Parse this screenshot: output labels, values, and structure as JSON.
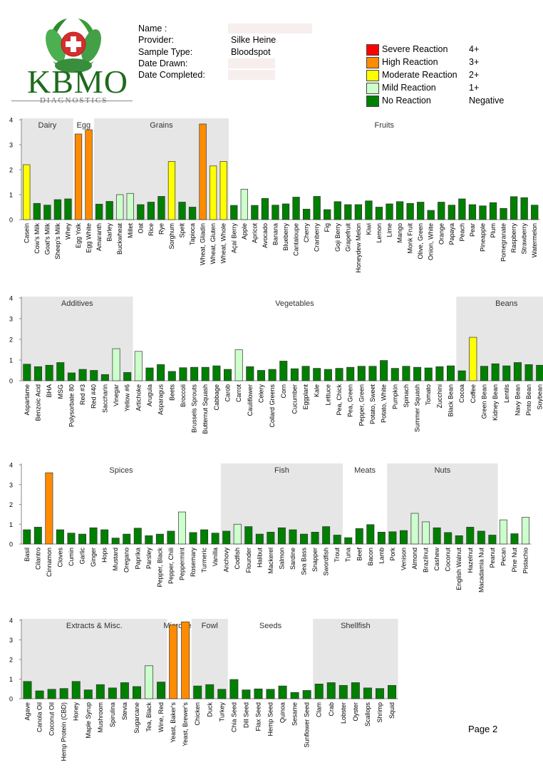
{
  "header": {
    "logo": {
      "name": "KBMO",
      "subtitle": "DIAGNOSTICS"
    },
    "fields": [
      {
        "label": "Name :",
        "value": ""
      },
      {
        "label": "Provider:",
        "value": "Silke Heine"
      },
      {
        "label": "Sample Type:",
        "value": "Bloodspot"
      },
      {
        "label": "Date Drawn:",
        "value": ""
      },
      {
        "label": "Date Completed:",
        "value": ""
      }
    ]
  },
  "legend": [
    {
      "label": "Severe Reaction",
      "level": "4+",
      "color": "#ff0000"
    },
    {
      "label": "High Reaction",
      "level": "3+",
      "color": "#ff8c00"
    },
    {
      "label": "Moderate Reaction",
      "level": "2+",
      "color": "#ffff00"
    },
    {
      "label": "Mild Reaction",
      "level": "1+",
      "color": "#ccffcc"
    },
    {
      "label": "No Reaction",
      "level": "Negative",
      "color": "#008000"
    }
  ],
  "page": {
    "number_label": "Page 2"
  },
  "chart_data": [
    {
      "type": "bar",
      "ylim": [
        0,
        4
      ],
      "yticks": [
        0,
        1,
        2,
        3,
        4
      ],
      "groups": [
        {
          "name": "Dairy",
          "start": 0,
          "end": 4,
          "shaded": true
        },
        {
          "name": "Egg",
          "start": 5,
          "end": 6,
          "shaded": false
        },
        {
          "name": "Grains",
          "start": 7,
          "end": 19,
          "shaded": true
        },
        {
          "name": "Fruits",
          "start": 20,
          "end": 49,
          "shaded": false
        }
      ],
      "categories": [
        "Casein",
        "Cow's Milk",
        "Goat's Milk",
        "Sheep's Milk",
        "Whey",
        "Egg Yolk",
        "Egg White",
        "Amaranth",
        "Barley",
        "Buckwheat",
        "Millet",
        "Oat",
        "Rice",
        "Rye",
        "Sorghum",
        "Spelt",
        "Tapioca",
        "Wheat, Gliadin",
        "Wheat, Gluten",
        "Wheat, Whole",
        "Açaí Berry",
        "Apple",
        "Apricot",
        "Avocado",
        "Banana",
        "Blueberry",
        "Cantaloupe",
        "Cherry",
        "Cranberry",
        "Fig",
        "Goji Berry",
        "Grapefruit",
        "Honeydew Melon",
        "Kiwi",
        "Lemon",
        "Lime",
        "Mango",
        "Monk Fruit",
        "Olive, Green",
        "Onion, White",
        "Orange",
        "Papaya",
        "Peach",
        "Pear",
        "Pineapple",
        "Plum",
        "Pomegranate",
        "Raspberry",
        "Strawberry",
        "Watermelon"
      ],
      "values": [
        2.2,
        0.65,
        0.58,
        0.8,
        0.83,
        3.43,
        3.6,
        0.62,
        0.73,
        1.0,
        1.05,
        0.6,
        0.7,
        0.93,
        2.33,
        0.7,
        0.5,
        3.83,
        2.15,
        2.33,
        0.57,
        1.22,
        0.57,
        0.85,
        0.58,
        0.63,
        0.9,
        0.42,
        0.93,
        0.4,
        0.72,
        0.6,
        0.6,
        0.75,
        0.5,
        0.63,
        0.72,
        0.65,
        0.7,
        0.37,
        0.7,
        0.58,
        0.83,
        0.6,
        0.55,
        0.68,
        0.45,
        0.92,
        0.88,
        0.58
      ]
    },
    {
      "type": "bar",
      "ylim": [
        0,
        4
      ],
      "yticks": [
        0,
        1,
        2,
        3,
        4
      ],
      "groups": [
        {
          "name": "Additives",
          "start": 0,
          "end": 9,
          "shaded": true
        },
        {
          "name": "Vegetables",
          "start": 10,
          "end": 38,
          "shaded": false
        },
        {
          "name": "Beans",
          "start": 39,
          "end": 47,
          "shaded": true
        }
      ],
      "categories": [
        "Aspartame",
        "Benzoic Acid",
        "BHA",
        "MSG",
        "Polysorbate 80",
        "Red #3",
        "Red #40",
        "Saccharin",
        "Vinegar",
        "Yellow #6",
        "Artichoke",
        "Arugula",
        "Asparagus",
        "Beets",
        "Broccoli",
        "Brussels Sprouts",
        "Butternut Squash",
        "Cabbage",
        "Carob",
        "Carrot",
        "Cauliflower",
        "Celery",
        "Collard Greens",
        "Corn",
        "Cucumber",
        "Eggplant",
        "Kale",
        "Lettuce",
        "Pea, Chick",
        "Pea, Green",
        "Pepper, Green",
        "Potato, Sweet",
        "Potato, White",
        "Pumpkin",
        "Spinach",
        "Summer Squash",
        "Tomato",
        "Zucchini",
        "Black Bean",
        "Cocoa",
        "Coffee",
        "Green Bean",
        "Kidney Bean",
        "Lentils",
        "Navy Bean",
        "Pinto Bean",
        "Soybean"
      ],
      "values": [
        0.8,
        0.68,
        0.75,
        0.88,
        0.38,
        0.55,
        0.5,
        0.3,
        1.55,
        0.4,
        1.42,
        0.62,
        0.78,
        0.45,
        0.63,
        0.65,
        0.65,
        0.72,
        0.55,
        1.5,
        0.68,
        0.5,
        0.55,
        0.95,
        0.58,
        0.7,
        0.6,
        0.55,
        0.6,
        0.65,
        0.7,
        0.7,
        0.98,
        0.6,
        0.7,
        0.65,
        0.62,
        0.68,
        0.72,
        0.48,
        2.1,
        0.7,
        0.82,
        0.72,
        0.88,
        0.78,
        0.75
      ]
    },
    {
      "type": "bar",
      "ylim": [
        0,
        4
      ],
      "yticks": [
        0,
        1,
        2,
        3,
        4
      ],
      "groups": [
        {
          "name": "Spices",
          "start": 0,
          "end": 17,
          "shaded": false
        },
        {
          "name": "Fish",
          "start": 18,
          "end": 28,
          "shaded": true
        },
        {
          "name": "Meats",
          "start": 29,
          "end": 32,
          "shaded": false
        },
        {
          "name": "Nuts",
          "start": 33,
          "end": 42,
          "shaded": true
        }
      ],
      "categories": [
        "Basil",
        "Cilantro",
        "Cinnamon",
        "Cloves",
        "Cumin",
        "Garlic",
        "Ginger",
        "Hops",
        "Mustard",
        "Oregano",
        "Paprika",
        "Parsley",
        "Pepper, Black",
        "Pepper, Chili",
        "Peppermint",
        "Rosemary",
        "Turmeric",
        "Vanilla",
        "Anchovy",
        "Codfish",
        "Flounder",
        "Halibut",
        "Mackerel",
        "Salmon",
        "Sardine",
        "Sea Bass",
        "Snapper",
        "Swordfish",
        "Trout",
        "Tuna",
        "Beef",
        "Bacon",
        "Lamb",
        "Pork",
        "Venison",
        "Almond",
        "Brazilnut",
        "Cashew",
        "Coconut",
        "English Walnut",
        "Hazelnut",
        "Macadamia Nut",
        "Peanut",
        "Pecan",
        "Pine Nut",
        "Pistachio"
      ],
      "values": [
        0.72,
        0.85,
        3.6,
        0.72,
        0.55,
        0.5,
        0.82,
        0.72,
        0.3,
        0.5,
        0.8,
        0.42,
        0.5,
        0.65,
        1.62,
        0.58,
        0.72,
        0.55,
        0.65,
        1.0,
        0.88,
        0.5,
        0.6,
        0.82,
        0.72,
        0.5,
        0.6,
        0.88,
        0.45,
        0.32,
        0.78,
        0.98,
        0.6,
        0.62,
        0.68,
        1.55,
        1.12,
        0.82,
        0.58,
        0.42,
        0.85,
        0.65,
        0.45,
        1.22,
        0.52,
        1.35
      ]
    },
    {
      "type": "bar",
      "ylim": [
        0,
        4
      ],
      "yticks": [
        0,
        1,
        2,
        3,
        4
      ],
      "groups": [
        {
          "name": "Extracts & Misc.",
          "start": 0,
          "end": 11,
          "shaded": true
        },
        {
          "name": "Microbes",
          "start": 12,
          "end": 13,
          "shaded": false
        },
        {
          "name": "Fowl",
          "start": 14,
          "end": 16,
          "shaded": true
        },
        {
          "name": "Seeds",
          "start": 17,
          "end": 23,
          "shaded": false
        },
        {
          "name": "Shellfish",
          "start": 24,
          "end": 30,
          "shaded": true
        }
      ],
      "categories": [
        "Agave",
        "Canola Oil",
        "Coconut Oil",
        "Hemp Protein (CBD)",
        "Honey",
        "Maple Syrup",
        "Mushroom",
        "Spirulina",
        "Stevia",
        "Sugarcane",
        "Tea, Black",
        "Wine, Red",
        "Yeast, Baker's",
        "Yeast, Brewer's",
        "Chicken",
        "Duck",
        "Turkey",
        "Chia Seed",
        "Dill Seed",
        "Flax Seed",
        "Hemp Seed",
        "Quinoa",
        "Sesame",
        "Sunflower Seed",
        "Clam",
        "Crab",
        "Lobster",
        "Oyster",
        "Scallops",
        "Shrimp",
        "Squid"
      ],
      "values": [
        0.88,
        0.4,
        0.48,
        0.52,
        0.88,
        0.45,
        0.72,
        0.55,
        0.82,
        0.62,
        1.68,
        0.85,
        3.75,
        3.92,
        0.65,
        0.72,
        0.48,
        0.98,
        0.45,
        0.5,
        0.48,
        0.65,
        0.32,
        0.42,
        0.75,
        0.82,
        0.68,
        0.82,
        0.55,
        0.52,
        0.68
      ]
    }
  ]
}
